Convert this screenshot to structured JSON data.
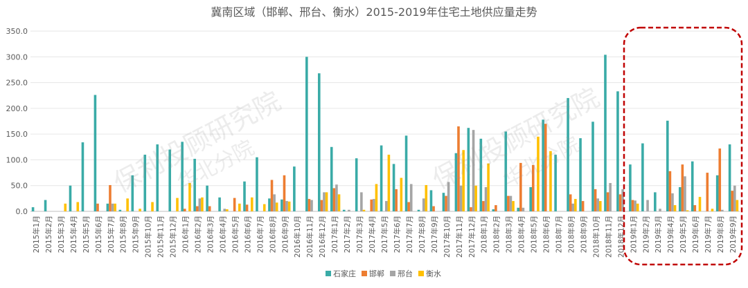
{
  "chart_data": {
    "type": "bar",
    "title": "冀南区域（邯郸、邢台、衡水）2015-2019年住宅土地供应量走势",
    "ylim": [
      0,
      350
    ],
    "yticks": [
      "0.0",
      "50.0",
      "100.0",
      "150.0",
      "200.0",
      "250.0",
      "300.0",
      "350.0"
    ],
    "grid": true,
    "legend_position": "bottom",
    "categories": [
      "2015年1月",
      "2015年2月",
      "2015年3月",
      "2015年4月",
      "2015年5月",
      "2015年6月",
      "2015年7月",
      "2015年8月",
      "2015年9月",
      "2015年10月",
      "2015年11月",
      "2015年12月",
      "2016年1月",
      "2016年2月",
      "2016年3月",
      "2016年4月",
      "2016年5月",
      "2016年6月",
      "2016年7月",
      "2016年8月",
      "2016年9月",
      "2016年10月",
      "2016年11月",
      "2016年12月",
      "2017年1月",
      "2017年2月",
      "2017年3月",
      "2017年4月",
      "2017年5月",
      "2017年6月",
      "2017年7月",
      "2017年8月",
      "2017年9月",
      "2017年10月",
      "2017年11月",
      "2017年12月",
      "2018年1月",
      "2018年2月",
      "2018年3月",
      "2018年4月",
      "2018年5月",
      "2018年6月",
      "2018年7月",
      "2018年8月",
      "2018年9月",
      "2018年10月",
      "2018年11月",
      "2018年12月",
      "2019年1月",
      "2019年2月",
      "2019年3月",
      "2019年4月",
      "2019年5月",
      "2019年6月",
      "2019年7月",
      "2019年8月",
      "2019年9月"
    ],
    "series": [
      {
        "name": "石家庄",
        "color": "#3AABA7",
        "values": [
          8,
          22,
          0,
          50,
          134,
          226,
          15,
          3,
          70,
          110,
          130,
          120,
          135,
          102,
          50,
          27,
          0,
          58,
          105,
          25,
          23,
          87,
          300,
          268,
          125,
          3,
          103,
          0,
          128,
          92,
          147,
          3,
          41,
          36,
          113,
          162,
          141,
          4,
          155,
          7,
          47,
          178,
          110,
          220,
          142,
          174,
          304,
          233,
          91,
          132,
          37,
          176,
          47,
          97,
          0,
          70,
          130
        ]
      },
      {
        "name": "邯郸",
        "color": "#ED7D31",
        "values": [
          0,
          0,
          0,
          0,
          0,
          15,
          51,
          0,
          0,
          0,
          0,
          0,
          5,
          10,
          10,
          0,
          26,
          13,
          0,
          61,
          70,
          0,
          24,
          22,
          45,
          0,
          0,
          23,
          0,
          43,
          18,
          0,
          10,
          30,
          165,
          8,
          20,
          12,
          30,
          94,
          90,
          170,
          0,
          33,
          20,
          43,
          37,
          33,
          22,
          0,
          0,
          78,
          91,
          12,
          75,
          122,
          40
        ]
      },
      {
        "name": "邢台",
        "color": "#A5A5A5",
        "values": [
          0,
          0,
          0,
          0,
          0,
          0,
          15,
          0,
          0,
          0,
          0,
          0,
          0,
          25,
          0,
          5,
          0,
          0,
          0,
          33,
          20,
          0,
          22,
          37,
          52,
          3,
          37,
          24,
          20,
          0,
          53,
          25,
          0,
          57,
          50,
          158,
          47,
          0,
          30,
          7,
          0,
          0,
          0,
          15,
          0,
          25,
          55,
          43,
          21,
          22,
          5,
          35,
          68,
          0,
          0,
          3,
          50
        ]
      },
      {
        "name": "衡水",
        "color": "#FFC000",
        "values": [
          0,
          0,
          15,
          18,
          0,
          0,
          15,
          25,
          5,
          18,
          0,
          26,
          55,
          27,
          0,
          4,
          15,
          27,
          14,
          17,
          19,
          0,
          0,
          37,
          33,
          0,
          3,
          53,
          110,
          65,
          0,
          51,
          0,
          0,
          119,
          50,
          93,
          0,
          20,
          0,
          145,
          117,
          0,
          24,
          0,
          20,
          0,
          0,
          15,
          0,
          0,
          12,
          2,
          28,
          5,
          0,
          22
        ]
      }
    ]
  },
  "watermarks": [
    "保利投顾研究院",
    "华北分院"
  ]
}
